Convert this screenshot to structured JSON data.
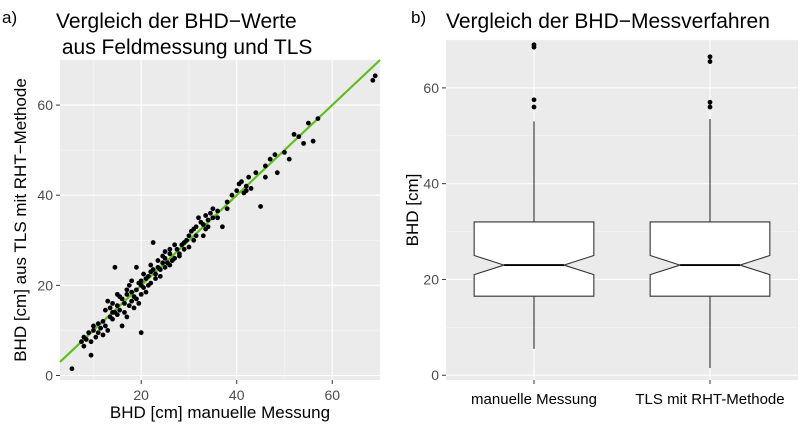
{
  "chart_data": [
    {
      "type": "scatter",
      "tag": "a)",
      "title_lines": [
        "Vergleich der BHD−Werte",
        " aus Feldmessung und TLS"
      ],
      "xlabel": "BHD [cm] manuelle Messung",
      "ylabel": "BHD [cm] aus TLS mit RHT−Methode",
      "xlim": [
        3,
        70
      ],
      "ylim": [
        -1,
        70
      ],
      "xticks": [
        20,
        40,
        60
      ],
      "yticks": [
        0,
        20,
        40,
        60
      ],
      "grid": true,
      "fit_line": {
        "color": "#5fbf1a",
        "slope": 1.0,
        "intercept": 0.0
      },
      "points": [
        [
          5.5,
          1.5
        ],
        [
          7.5,
          7.5
        ],
        [
          8,
          6.5
        ],
        [
          8.5,
          8
        ],
        [
          9.5,
          4.5
        ],
        [
          9,
          9.5
        ],
        [
          10,
          10
        ],
        [
          10.5,
          8.5
        ],
        [
          11,
          11.5
        ],
        [
          11.5,
          10.5
        ],
        [
          12,
          12
        ],
        [
          12.5,
          11
        ],
        [
          13,
          16.5
        ],
        [
          13.5,
          13
        ],
        [
          14,
          14
        ],
        [
          14.5,
          24
        ],
        [
          14,
          12.5
        ],
        [
          15,
          15.5
        ],
        [
          15.5,
          14.5
        ],
        [
          16,
          17
        ],
        [
          16.5,
          16
        ],
        [
          17,
          18
        ],
        [
          17,
          13
        ],
        [
          18,
          18.5
        ],
        [
          18.5,
          17.5
        ],
        [
          18,
          21
        ],
        [
          19,
          19
        ],
        [
          19.5,
          20.5
        ],
        [
          20,
          9.5
        ],
        [
          20,
          20
        ],
        [
          20.5,
          19.5
        ],
        [
          21,
          21.5
        ],
        [
          21.5,
          22
        ],
        [
          22,
          23
        ],
        [
          22.5,
          29.5
        ],
        [
          22,
          20.5
        ],
        [
          23,
          22.5
        ],
        [
          23.5,
          24
        ],
        [
          24,
          23.5
        ],
        [
          24.5,
          25
        ],
        [
          25,
          26
        ],
        [
          25,
          24
        ],
        [
          26,
          27
        ],
        [
          26.5,
          25.5
        ],
        [
          27,
          26
        ],
        [
          27.5,
          28
        ],
        [
          28,
          27
        ],
        [
          28.5,
          29
        ],
        [
          29,
          29.5
        ],
        [
          29.5,
          30
        ],
        [
          30,
          31
        ],
        [
          30.5,
          32
        ],
        [
          31,
          30
        ],
        [
          31.5,
          33
        ],
        [
          32,
          35
        ],
        [
          32.5,
          34
        ],
        [
          33,
          33.5
        ],
        [
          33.5,
          32.5
        ],
        [
          34,
          34.5
        ],
        [
          34.5,
          36
        ],
        [
          35,
          35
        ],
        [
          36,
          36.5
        ],
        [
          37,
          33
        ],
        [
          38,
          38.5
        ],
        [
          39,
          40
        ],
        [
          40,
          41
        ],
        [
          40.5,
          42.5
        ],
        [
          41,
          43
        ],
        [
          41.5,
          40.5
        ],
        [
          42,
          42
        ],
        [
          42.5,
          44
        ],
        [
          43,
          41.5
        ],
        [
          45,
          37.5
        ],
        [
          46,
          46.5
        ],
        [
          47,
          48
        ],
        [
          48,
          49
        ],
        [
          48.5,
          45
        ],
        [
          50,
          49.5
        ],
        [
          51,
          48
        ],
        [
          52,
          53.5
        ],
        [
          53,
          53
        ],
        [
          54,
          51.5
        ],
        [
          55,
          56
        ],
        [
          56,
          52
        ],
        [
          57,
          57
        ],
        [
          68.5,
          65.5
        ],
        [
          69,
          66.5
        ],
        [
          16,
          11
        ],
        [
          17.5,
          15.5
        ],
        [
          19,
          17
        ],
        [
          21,
          18.5
        ],
        [
          23,
          21.5
        ],
        [
          12,
          9
        ],
        [
          13,
          10
        ],
        [
          15,
          13.5
        ],
        [
          11,
          9.5
        ],
        [
          9.5,
          7.5
        ],
        [
          24,
          22
        ],
        [
          26,
          24.5
        ],
        [
          28,
          26.5
        ],
        [
          18.5,
          15
        ],
        [
          15.5,
          17.5
        ],
        [
          20,
          21
        ],
        [
          22,
          24.5
        ],
        [
          25,
          27.5
        ],
        [
          27,
          29
        ],
        [
          30,
          28.5
        ],
        [
          33,
          31
        ],
        [
          35,
          37
        ],
        [
          38,
          37
        ],
        [
          44,
          45
        ],
        [
          46,
          44
        ],
        [
          19,
          24
        ],
        [
          16.5,
          14
        ],
        [
          14,
          16
        ],
        [
          20.5,
          22.5
        ],
        [
          21.5,
          20
        ],
        [
          23.5,
          25.5
        ],
        [
          25.5,
          25
        ],
        [
          29,
          28
        ],
        [
          31,
          32.5
        ],
        [
          34,
          33
        ],
        [
          36,
          35
        ],
        [
          42,
          41
        ],
        [
          17,
          19
        ],
        [
          18,
          16.5
        ],
        [
          12.5,
          14.5
        ],
        [
          14.5,
          14
        ],
        [
          8,
          8.5
        ],
        [
          10,
          11
        ],
        [
          31.5,
          31
        ],
        [
          33.5,
          35.5
        ],
        [
          26,
          28
        ],
        [
          24.5,
          26.5
        ],
        [
          22.5,
          23.5
        ],
        [
          20,
          18
        ],
        [
          19.5,
          16
        ],
        [
          17.5,
          20
        ],
        [
          15,
          18
        ],
        [
          13.5,
          15
        ]
      ]
    },
    {
      "type": "boxplot",
      "tag": "b)",
      "title": "Vergleich der BHD−Messverfahren",
      "xlabel": "",
      "ylabel": "BHD [cm]",
      "ylim": [
        -1,
        70
      ],
      "yticks": [
        0,
        20,
        40,
        60
      ],
      "grid": true,
      "notched": true,
      "categories": [
        "manuelle Messung",
        "TLS mit RHT-Methode"
      ],
      "boxes": [
        {
          "min": 5.5,
          "q1": 16.5,
          "median": 23,
          "q3": 32,
          "max": 53,
          "notch_low": 21,
          "notch_high": 25,
          "outliers": [
            56,
            57.5,
            68.5,
            69
          ]
        },
        {
          "min": 1.5,
          "q1": 16.5,
          "median": 23,
          "q3": 32,
          "max": 53.5,
          "notch_low": 21,
          "notch_high": 25,
          "outliers": [
            56,
            57,
            65.5,
            66.5
          ]
        }
      ]
    }
  ]
}
